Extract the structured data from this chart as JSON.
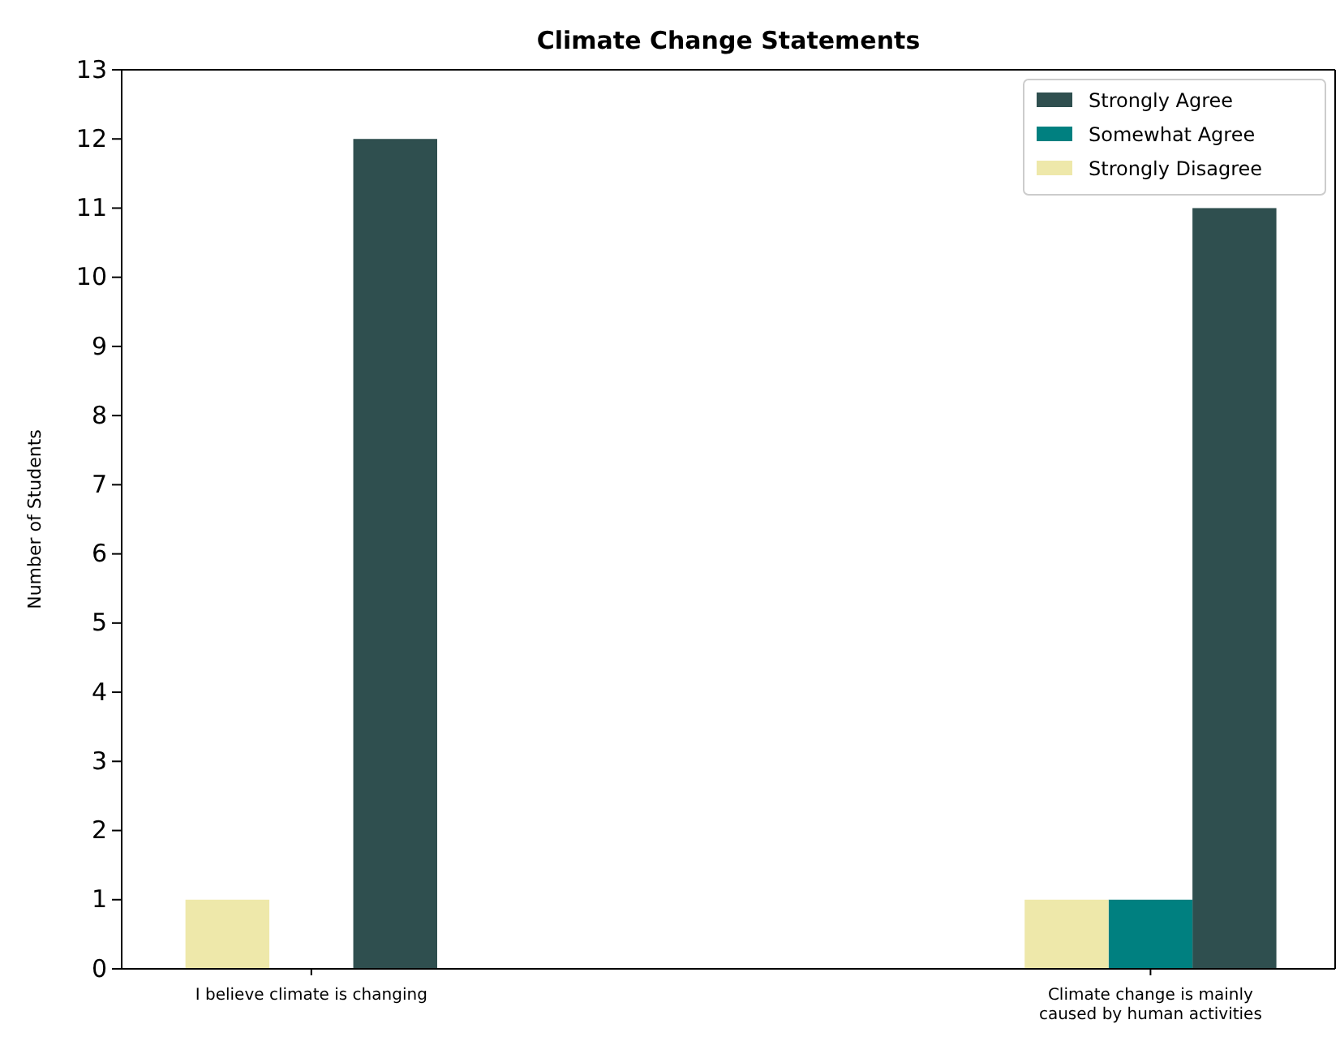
{
  "chart_data": {
    "type": "bar",
    "title": "Climate Change Statements",
    "ylabel": "Number of Students",
    "categories": [
      "I believe climate is changing",
      "Climate change is mainly\ncaused by human activities"
    ],
    "series": [
      {
        "name": "Strongly Agree",
        "color": "#2f4f4f",
        "values": [
          12,
          11
        ]
      },
      {
        "name": "Somewhat Agree",
        "color": "#008080",
        "values": [
          0,
          1
        ]
      },
      {
        "name": "Strongly Disagree",
        "color": "#eee8aa",
        "values": [
          1,
          1
        ]
      }
    ],
    "ylim": [
      0,
      13
    ],
    "yticks": [
      0,
      1,
      2,
      3,
      4,
      5,
      6,
      7,
      8,
      9,
      10,
      11,
      12,
      13
    ],
    "legend": "top right",
    "grid": false
  }
}
